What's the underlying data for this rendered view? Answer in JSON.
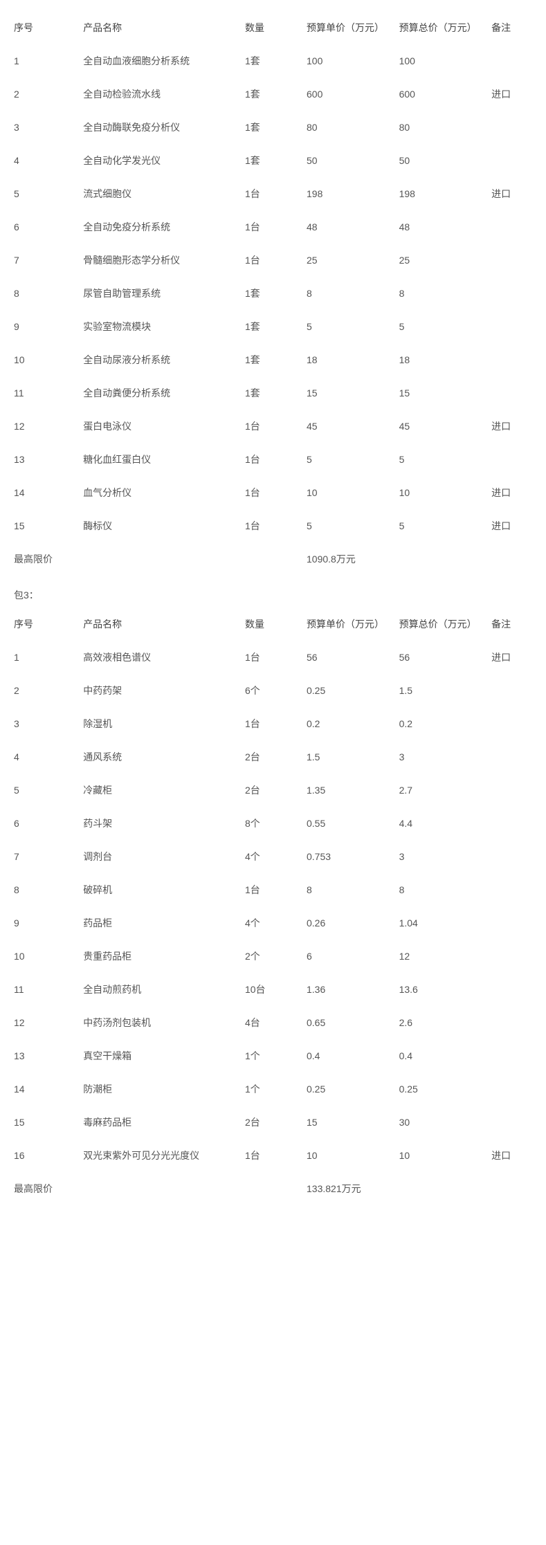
{
  "columns": {
    "seq": "序号",
    "name": "产品名称",
    "qty": "数量",
    "unit_price": "预算单价（万元）",
    "total_price": "预算总价（万元）",
    "remark": "备注"
  },
  "limit_label": "最高限价",
  "section3_label": "包3：",
  "table_a": {
    "rows": [
      {
        "seq": "1",
        "name": "全自动血液细胞分析系统",
        "qty": "1套",
        "unit": "100",
        "total": "100",
        "remark": ""
      },
      {
        "seq": "2",
        "name": "全自动检验流水线",
        "qty": "1套",
        "unit": "600",
        "total": "600",
        "remark": "进口"
      },
      {
        "seq": "3",
        "name": "全自动酶联免疫分析仪",
        "qty": "1套",
        "unit": "80",
        "total": "80",
        "remark": ""
      },
      {
        "seq": "4",
        "name": "全自动化学发光仪",
        "qty": "1套",
        "unit": "50",
        "total": "50",
        "remark": ""
      },
      {
        "seq": "5",
        "name": "流式细胞仪",
        "qty": "1台",
        "unit": "198",
        "total": "198",
        "remark": "进口"
      },
      {
        "seq": "6",
        "name": "全自动免疫分析系统",
        "qty": "1台",
        "unit": "48",
        "total": "48",
        "remark": ""
      },
      {
        "seq": "7",
        "name": "骨髓细胞形态学分析仪",
        "qty": "1台",
        "unit": "25",
        "total": "25",
        "remark": ""
      },
      {
        "seq": "8",
        "name": "尿管自助管理系统",
        "qty": "1套",
        "unit": "8",
        "total": "8",
        "remark": ""
      },
      {
        "seq": "9",
        "name": "实验室物流模块",
        "qty": "1套",
        "unit": "5",
        "total": "5",
        "remark": ""
      },
      {
        "seq": "10",
        "name": "全自动尿液分析系统",
        "qty": "1套",
        "unit": "18",
        "total": "18",
        "remark": ""
      },
      {
        "seq": "11",
        "name": "全自动粪便分析系统",
        "qty": "1套",
        "unit": "15",
        "total": "15",
        "remark": ""
      },
      {
        "seq": "12",
        "name": "蛋白电泳仪",
        "qty": "1台",
        "unit": "45",
        "total": "45",
        "remark": "进口"
      },
      {
        "seq": "13",
        "name": "糖化血红蛋白仪",
        "qty": "1台",
        "unit": "5",
        "total": "5",
        "remark": ""
      },
      {
        "seq": "14",
        "name": "血气分析仪",
        "qty": "1台",
        "unit": "10",
        "total": "10",
        "remark": "进口"
      },
      {
        "seq": "15",
        "name": "酶标仪",
        "qty": "1台",
        "unit": "5",
        "total": "5",
        "remark": "进口"
      }
    ],
    "limit": "1090.8万元"
  },
  "table_b": {
    "rows": [
      {
        "seq": "1",
        "name": "高效液相色谱仪",
        "qty": "1台",
        "unit": "56",
        "total": "56",
        "remark": "进口"
      },
      {
        "seq": "2",
        "name": "中药药架",
        "qty": "6个",
        "unit": "0.25",
        "total": "1.5",
        "remark": ""
      },
      {
        "seq": "3",
        "name": "除湿机",
        "qty": "1台",
        "unit": "0.2",
        "total": "0.2",
        "remark": ""
      },
      {
        "seq": "4",
        "name": "通风系统",
        "qty": "2台",
        "unit": "1.5",
        "total": "3",
        "remark": ""
      },
      {
        "seq": "5",
        "name": "冷藏柜",
        "qty": "2台",
        "unit": "1.35",
        "total": "2.7",
        "remark": ""
      },
      {
        "seq": "6",
        "name": "药斗架",
        "qty": "8个",
        "unit": "0.55",
        "total": "4.4",
        "remark": ""
      },
      {
        "seq": "7",
        "name": "调剂台",
        "qty": "4个",
        "unit": "0.753",
        "total": "3",
        "remark": ""
      },
      {
        "seq": "8",
        "name": "破碎机",
        "qty": "1台",
        "unit": "8",
        "total": "8",
        "remark": ""
      },
      {
        "seq": "9",
        "name": "药品柜",
        "qty": "4个",
        "unit": "0.26",
        "total": "1.04",
        "remark": ""
      },
      {
        "seq": "10",
        "name": "贵重药品柜",
        "qty": "2个",
        "unit": "6",
        "total": "12",
        "remark": ""
      },
      {
        "seq": "11",
        "name": "全自动煎药机",
        "qty": "10台",
        "unit": "1.36",
        "total": "13.6",
        "remark": ""
      },
      {
        "seq": "12",
        "name": "中药汤剂包装机",
        "qty": "4台",
        "unit": "0.65",
        "total": "2.6",
        "remark": ""
      },
      {
        "seq": "13",
        "name": "真空干燥箱",
        "qty": "1个",
        "unit": "0.4",
        "total": "0.4",
        "remark": ""
      },
      {
        "seq": "14",
        "name": "防潮柜",
        "qty": "1个",
        "unit": "0.25",
        "total": "0.25",
        "remark": ""
      },
      {
        "seq": "15",
        "name": "毒麻药品柜",
        "qty": "2台",
        "unit": "15",
        "total": "30",
        "remark": ""
      },
      {
        "seq": "16",
        "name": "双光束紫外可见分光光度仪",
        "qty": "1台",
        "unit": "10",
        "total": "10",
        "remark": "进口"
      }
    ],
    "limit": "133.821万元"
  }
}
